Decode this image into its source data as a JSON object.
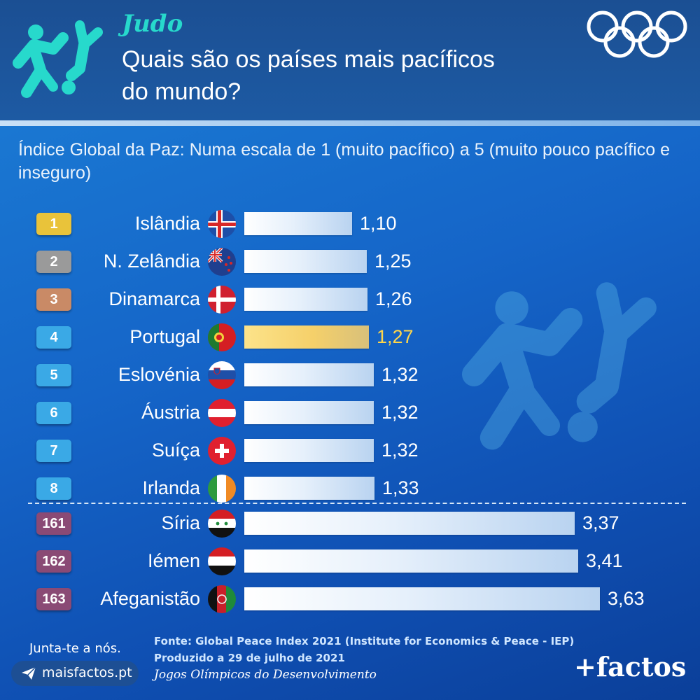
{
  "header": {
    "sport": "Judo",
    "title": "Quais são os países mais pacíficos do mundo?"
  },
  "colors": {
    "judo_teal": "#27d9cc",
    "highlight_gold": "#ffd64a",
    "rank_gold": "#e9c33a",
    "rank_silver": "#9a9a9a",
    "rank_bronze": "#c98a66",
    "rank_blue": "#3aa9e6",
    "rank_bottom": "#8a4a75"
  },
  "chart_data": {
    "type": "bar",
    "orientation": "horizontal",
    "title": "Índice Global da Paz: Numa escala de 1 (muito pacífico) a 5 (muito pouco pacífico e inseguro)",
    "xlim": [
      0,
      4
    ],
    "rows": [
      {
        "rank": "1",
        "country": "Islândia",
        "value": 1.1,
        "label": "1,10",
        "medal": "gold",
        "flag": "iceland-flag"
      },
      {
        "rank": "2",
        "country": "N. Zelândia",
        "value": 1.25,
        "label": "1,25",
        "medal": "silver",
        "flag": "new-zealand-flag"
      },
      {
        "rank": "3",
        "country": "Dinamarca",
        "value": 1.26,
        "label": "1,26",
        "medal": "bronze",
        "flag": "denmark-flag"
      },
      {
        "rank": "4",
        "country": "Portugal",
        "value": 1.27,
        "label": "1,27",
        "medal": "blue",
        "flag": "portugal-flag",
        "highlight": true
      },
      {
        "rank": "5",
        "country": "Eslovénia",
        "value": 1.32,
        "label": "1,32",
        "medal": "blue",
        "flag": "slovenia-flag"
      },
      {
        "rank": "6",
        "country": "Áustria",
        "value": 1.32,
        "label": "1,32",
        "medal": "blue",
        "flag": "austria-flag"
      },
      {
        "rank": "7",
        "country": "Suíça",
        "value": 1.32,
        "label": "1,32",
        "medal": "blue",
        "flag": "switzerland-flag"
      },
      {
        "rank": "8",
        "country": "Irlanda",
        "value": 1.33,
        "label": "1,33",
        "medal": "blue",
        "flag": "ireland-flag"
      },
      {
        "rank": "161",
        "country": "Síria",
        "value": 3.37,
        "label": "3,37",
        "medal": "bottom",
        "flag": "syria-flag"
      },
      {
        "rank": "162",
        "country": "Iémen",
        "value": 3.41,
        "label": "3,41",
        "medal": "bottom",
        "flag": "yemen-flag"
      },
      {
        "rank": "163",
        "country": "Afeganistão",
        "value": 3.63,
        "label": "3,63",
        "medal": "bottom",
        "flag": "afghanistan-flag"
      }
    ]
  },
  "footer": {
    "join": "Junta-te a nós.",
    "site": "maisfactos.pt",
    "source": "Fonte: Global Peace Index 2021 (Institute for Economics & Peace - IEP)",
    "produced": "Produzido a 29 de julho de 2021",
    "series": "Jogos Olímpicos do Desenvolvimento",
    "brand": "+factos"
  }
}
